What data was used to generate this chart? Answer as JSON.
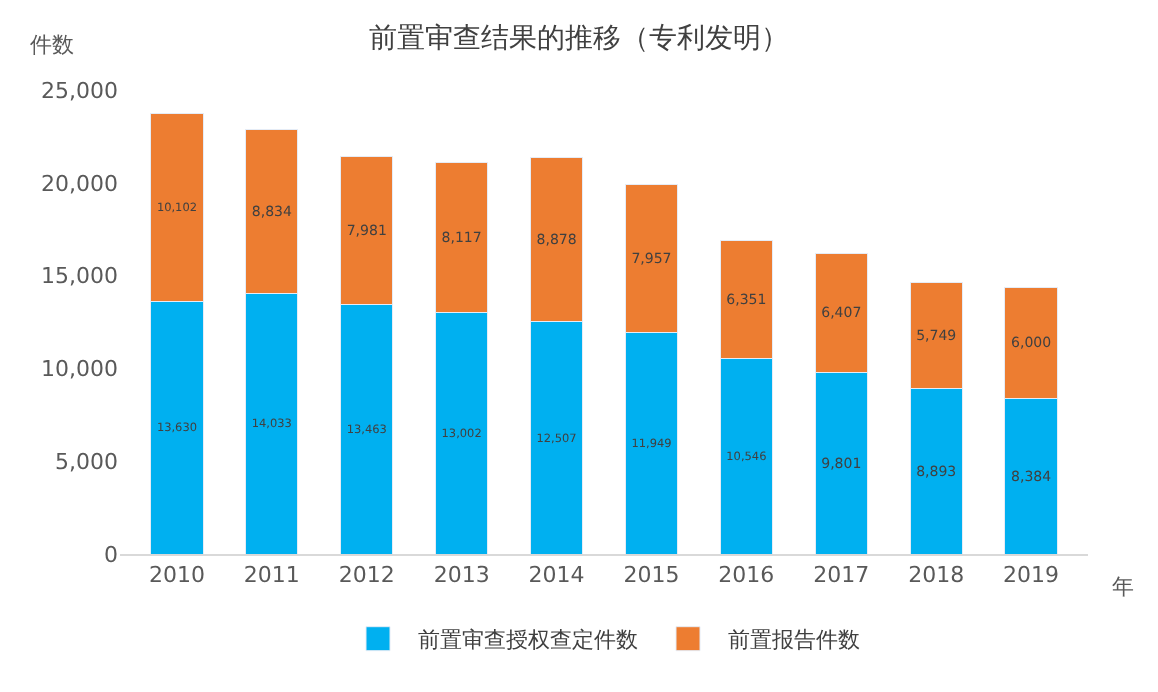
{
  "chart_data": {
    "type": "bar",
    "title": "前置审查结果的推移（专利发明）",
    "ylabel": "件数",
    "xlabel": "年",
    "categories": [
      "2010",
      "2011",
      "2012",
      "2013",
      "2014",
      "2015",
      "2016",
      "2017",
      "2018",
      "2019"
    ],
    "series": [
      {
        "name": "前置审查授权查定件数",
        "color": "#00b0f0",
        "values": [
          13630,
          14033,
          13463,
          13002,
          12507,
          11949,
          10546,
          9801,
          8893,
          8384
        ],
        "value_labels": [
          "13,630",
          "14,033",
          "13,463",
          "13,002",
          "12,507",
          "11,949",
          "10,546",
          "9,801",
          "8,893",
          "8,384"
        ]
      },
      {
        "name": "前置报告件数",
        "color": "#ed7d31",
        "values": [
          10102,
          8834,
          7981,
          8117,
          8878,
          7957,
          6351,
          6407,
          5749,
          6000
        ],
        "value_labels": [
          "10,102",
          "8,834",
          "7,981",
          "8,117",
          "8,878",
          "7,957",
          "6,351",
          "6,407",
          "5,749",
          "6,000"
        ]
      }
    ],
    "stacked": true,
    "ylim": [
      0,
      25000
    ],
    "yticks": [
      {
        "value": 0,
        "label": "0"
      },
      {
        "value": 5000,
        "label": "5,000"
      },
      {
        "value": 10000,
        "label": "10,000"
      },
      {
        "value": 15000,
        "label": "15,000"
      },
      {
        "value": 20000,
        "label": "20,000"
      },
      {
        "value": 25000,
        "label": "25,000"
      }
    ],
    "grid": false,
    "legend": "bottom"
  }
}
